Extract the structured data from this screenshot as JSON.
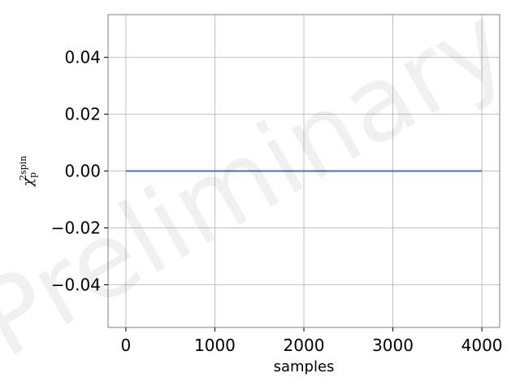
{
  "chart_data": {
    "type": "line",
    "title": "",
    "xlabel": "samples",
    "ylabel": {
      "symbol": "χ",
      "subscript": "p",
      "superscript": "2spin"
    },
    "xlim": [
      -200,
      4200
    ],
    "ylim": [
      -0.055,
      0.055
    ],
    "xticks": [
      0,
      1000,
      2000,
      3000,
      4000
    ],
    "xtick_labels": [
      "0",
      "1000",
      "2000",
      "3000",
      "4000"
    ],
    "yticks": [
      0.04,
      0.02,
      0.0,
      -0.02,
      -0.04
    ],
    "ytick_labels": [
      "0.04",
      "0.02",
      "0.00",
      "−0.02",
      "−0.04"
    ],
    "grid": true,
    "series": [
      {
        "x": [
          0,
          1000,
          2000,
          3000,
          4000
        ],
        "y": [
          0,
          0,
          0,
          0,
          0
        ],
        "color": "#4c72b0"
      }
    ],
    "watermark": "Preliminary"
  }
}
